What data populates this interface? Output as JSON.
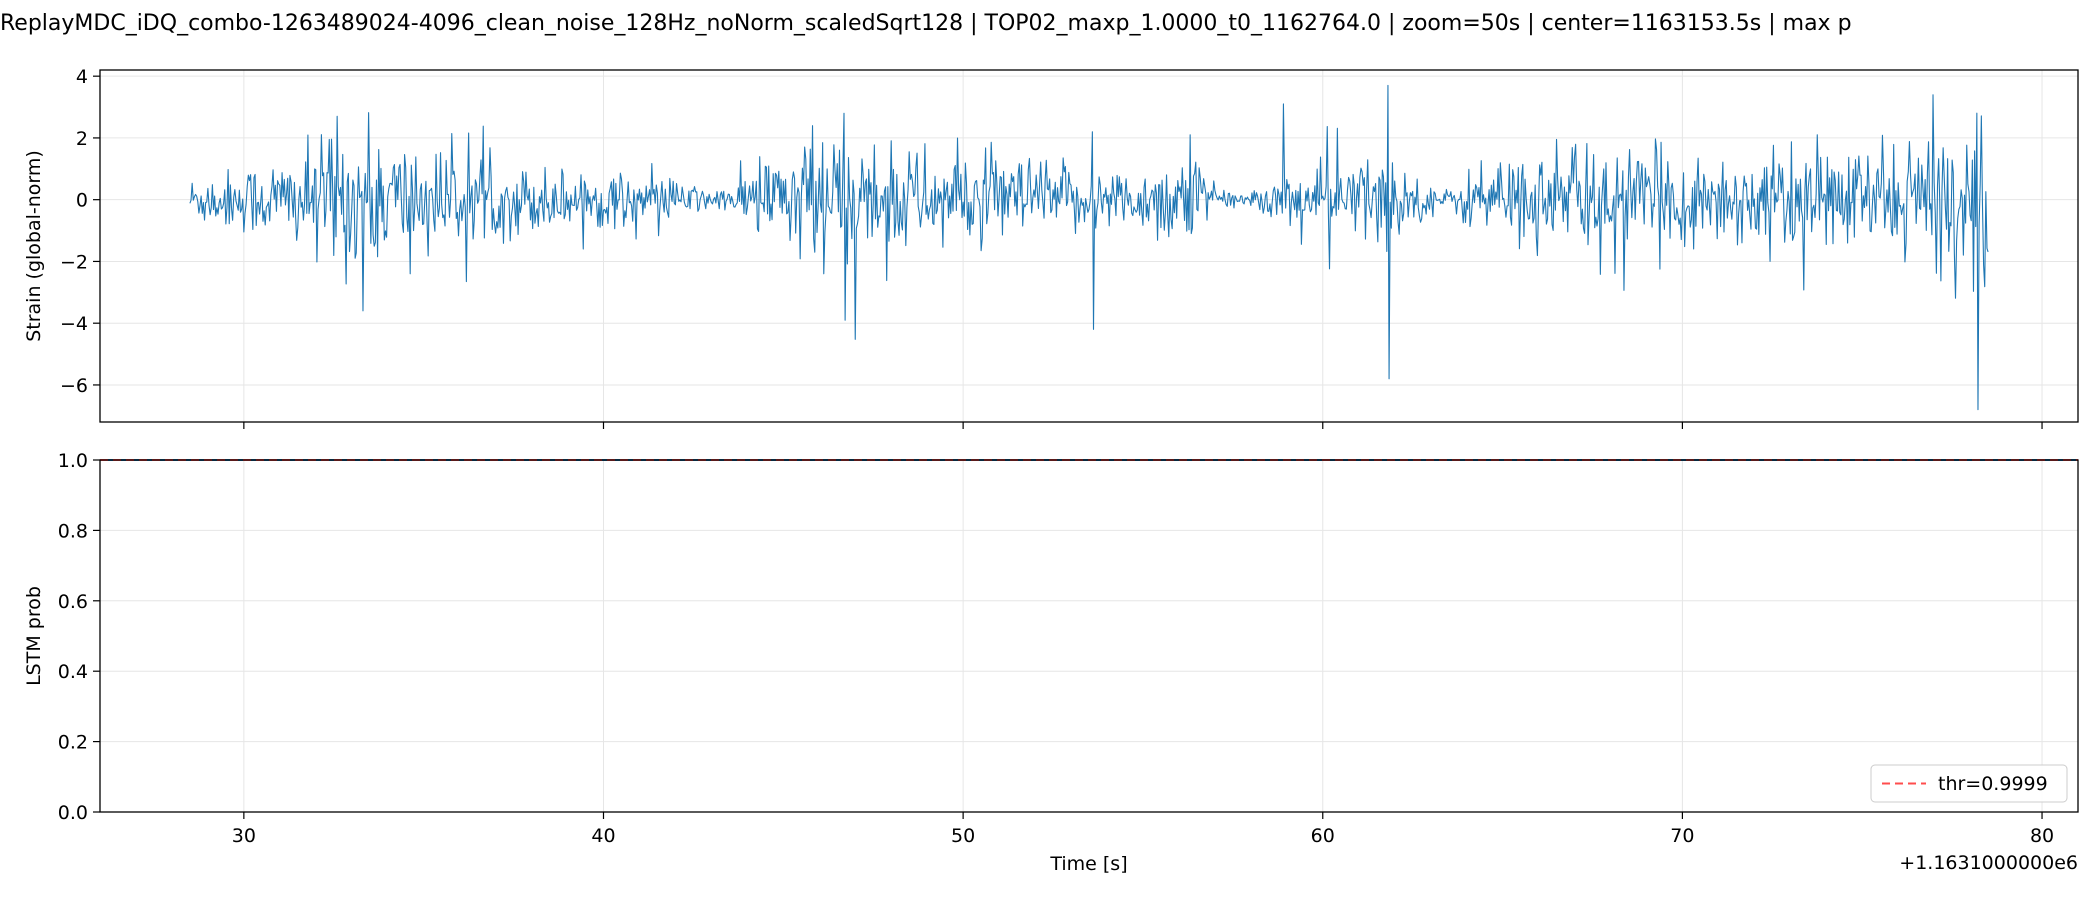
{
  "title": "ReplayMDC_iDQ_combo-1263489024-4096_clean_noise_128Hz_noNorm_scaledSqrt128 | TOP02_maxp_1.0000_t0_1162764.0 | zoom=50s | center=1163153.5s | max p",
  "colors": {
    "strain": "#1f77b4",
    "threshold": "#ff4d4d",
    "prob": "#1f77b4",
    "grid": "#e6e6e6"
  },
  "chart_data": [
    {
      "type": "line",
      "panel": "strain",
      "ylabel": "Strain (global-norm)",
      "xlim": [
        26.0,
        81.0
      ],
      "ylim": [
        -7.2,
        4.2
      ],
      "yticks": [
        -6,
        -4,
        -2,
        0,
        2,
        4
      ],
      "ytick_labels": [
        "−6",
        "−4",
        "−2",
        "0",
        "2",
        "4"
      ],
      "xticks": [
        30,
        40,
        50,
        60,
        70,
        80
      ],
      "grid": true,
      "series": [
        {
          "sample_interval_s": 0.03125,
          "x_start": 28.5,
          "x_end": 78.5,
          "envelope_x": [
            28.5,
            30,
            31,
            32,
            32.7,
            33.3,
            34,
            34.8,
            36,
            38,
            40,
            42,
            43.5,
            44,
            45,
            46,
            46.5,
            47,
            48,
            49,
            50,
            51,
            52,
            53,
            53.6,
            54,
            55,
            56.3,
            57,
            58,
            59,
            60,
            61,
            61.8,
            62.5,
            63.5,
            64,
            65,
            66,
            67,
            68,
            69,
            70,
            71,
            72,
            73,
            74,
            75,
            76,
            77,
            78,
            78.5
          ],
          "envelope_amp": [
            0.5,
            0.7,
            0.9,
            1.1,
            1.5,
            1.5,
            1.4,
            1.2,
            0.9,
            0.7,
            0.6,
            0.4,
            0.2,
            0.7,
            1.1,
            1.6,
            1.6,
            1.4,
            1.2,
            1.0,
            1.0,
            0.9,
            0.9,
            0.7,
            0.7,
            0.6,
            0.7,
            1.1,
            0.3,
            0.1,
            0.6,
            0.8,
            0.9,
            1.0,
            0.5,
            0.2,
            0.6,
            0.8,
            1.0,
            1.1,
            1.1,
            1.0,
            1.0,
            1.0,
            0.9,
            1.0,
            1.1,
            1.1,
            1.2,
            1.4,
            1.8,
            1.5
          ],
          "spikes": [
            {
              "x": 32.6,
              "y": 2.7
            },
            {
              "x": 33.3,
              "y": -3.6
            },
            {
              "x": 34.6,
              "y": -2.4
            },
            {
              "x": 46.1,
              "y": -2.4
            },
            {
              "x": 53.6,
              "y": 2.2
            },
            {
              "x": 53.6,
              "y": -4.2
            },
            {
              "x": 56.3,
              "y": 2.1
            },
            {
              "x": 58.9,
              "y": 3.1
            },
            {
              "x": 61.8,
              "y": 3.7
            },
            {
              "x": 61.8,
              "y": -5.8
            },
            {
              "x": 78.2,
              "y": 2.8
            },
            {
              "x": 78.2,
              "y": -6.8
            }
          ]
        }
      ]
    },
    {
      "type": "line",
      "panel": "probability",
      "ylabel": "LSTM prob",
      "xlabel": "Time [s]",
      "x_offset_label": "+1.1631000000e6",
      "xlim": [
        26.0,
        81.0
      ],
      "ylim": [
        0.0,
        1.0
      ],
      "yticks": [
        0.0,
        0.2,
        0.4,
        0.6,
        0.8,
        1.0
      ],
      "ytick_labels": [
        "0.0",
        "0.2",
        "0.4",
        "0.6",
        "0.8",
        "1.0"
      ],
      "xticks": [
        30,
        40,
        50,
        60,
        70,
        80
      ],
      "xtick_labels": [
        "30",
        "40",
        "50",
        "60",
        "70",
        "80"
      ],
      "grid": true,
      "legend_position": "bottom-right",
      "threshold": {
        "name": "thr=0.9999",
        "value": 0.9999
      },
      "series": [
        {
          "x": [
            26.0,
            81.0
          ],
          "values": [
            1.0,
            1.0
          ]
        }
      ]
    }
  ]
}
